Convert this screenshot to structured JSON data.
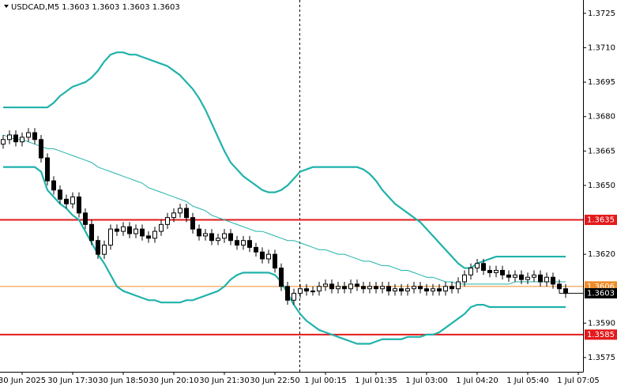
{
  "chart_data": {
    "type": "candlestick",
    "title": "USDCAD,M5  1.3603 1.3603 1.3603 1.3603",
    "categories": [
      null,
      null,
      null,
      "30 Jun 2025",
      null,
      null,
      null,
      null,
      null,
      null,
      null,
      "30 Jun 17:30",
      null,
      null,
      null,
      null,
      null,
      null,
      null,
      "30 Jun 18:50",
      null,
      null,
      null,
      null,
      null,
      null,
      null,
      "30 Jun 20:10",
      null,
      null,
      null,
      null,
      null,
      null,
      null,
      "30 Jun 21:30",
      null,
      null,
      null,
      null,
      null,
      null,
      null,
      "30 Jun 22:50",
      null,
      null,
      null,
      null,
      null,
      null,
      null,
      "1 Jul 00:15",
      null,
      null,
      null,
      null,
      null,
      null,
      null,
      "1 Jul 01:35",
      null,
      null,
      null,
      null,
      null,
      null,
      null,
      "1 Jul 03:00",
      null,
      null,
      null,
      null,
      null,
      null,
      null,
      "1 Jul 04:20",
      null,
      null,
      null,
      null,
      null,
      null,
      null,
      "1 Jul 05:40",
      null,
      null,
      null,
      null,
      null,
      null,
      null,
      "1 Jul 07:05"
    ],
    "open": [
      1.3668,
      1.367,
      1.3672,
      1.3669,
      1.3671,
      1.3673,
      1.367,
      1.3662,
      1.3652,
      1.3648,
      1.3644,
      1.3642,
      1.3645,
      1.3638,
      1.3633,
      1.3626,
      1.362,
      1.3624,
      1.3631,
      1.363,
      1.3632,
      1.3629,
      1.3631,
      1.3628,
      1.3627,
      1.363,
      1.3633,
      1.3636,
      1.3638,
      1.364,
      1.3636,
      1.3631,
      1.3628,
      1.3629,
      1.3626,
      1.3627,
      1.3629,
      1.3626,
      1.3624,
      1.3626,
      1.3623,
      1.3621,
      1.3618,
      1.362,
      1.3614,
      1.3606,
      1.36,
      1.3603,
      1.3605,
      1.3604,
      1.3604,
      1.3606,
      1.3607,
      1.3605,
      1.3606,
      1.3605,
      1.3607,
      1.3606,
      1.3605,
      1.3606,
      1.3605,
      1.3606,
      1.3604,
      1.3605,
      1.3604,
      1.3605,
      1.3606,
      1.3605,
      1.3604,
      1.3605,
      1.3604,
      1.3606,
      1.3605,
      1.3608,
      1.3611,
      1.3614,
      1.3616,
      1.3613,
      1.3612,
      1.3613,
      1.3611,
      1.361,
      1.3611,
      1.3609,
      1.361,
      1.3611,
      1.3608,
      1.361,
      1.3607,
      1.3605,
      null,
      null
    ],
    "high": [
      1.3672,
      1.3674,
      1.3674,
      1.3673,
      1.3675,
      1.3675,
      1.3672,
      1.3664,
      1.3654,
      1.365,
      1.3646,
      1.3647,
      1.3647,
      1.364,
      1.3635,
      1.3628,
      1.3626,
      1.3633,
      1.3633,
      1.3634,
      1.3634,
      1.3633,
      1.3633,
      1.363,
      1.3632,
      1.3635,
      1.3638,
      1.364,
      1.3642,
      1.3642,
      1.3638,
      1.3633,
      1.3631,
      1.3631,
      1.3629,
      1.3631,
      1.3631,
      1.3628,
      1.3628,
      1.3628,
      1.3625,
      1.3623,
      1.3622,
      1.3622,
      1.3616,
      1.3608,
      1.3605,
      1.3607,
      1.3607,
      1.3606,
      1.3608,
      1.3609,
      1.3609,
      1.3608,
      1.3608,
      1.3609,
      1.3609,
      1.3608,
      1.3608,
      1.3608,
      1.3608,
      1.3608,
      1.3607,
      1.3607,
      1.3607,
      1.3608,
      1.3608,
      1.3607,
      1.3607,
      1.3607,
      1.3608,
      1.3608,
      1.361,
      1.3613,
      1.3616,
      1.3618,
      1.3618,
      1.3615,
      1.3615,
      1.3615,
      1.3613,
      1.3613,
      1.3613,
      1.3612,
      1.3613,
      1.3613,
      1.3612,
      1.3612,
      1.3609,
      1.3607,
      null,
      null
    ],
    "low": [
      1.3666,
      1.3668,
      1.3667,
      1.3667,
      1.3669,
      1.3668,
      1.366,
      1.365,
      1.3646,
      1.3642,
      1.364,
      1.364,
      1.3636,
      1.3631,
      1.3624,
      1.3618,
      1.3618,
      1.3622,
      1.3628,
      1.3628,
      1.3627,
      1.3627,
      1.3626,
      1.3625,
      1.3625,
      1.3628,
      1.3631,
      1.3634,
      1.3636,
      1.3634,
      1.3629,
      1.3626,
      1.3626,
      1.3624,
      1.3624,
      1.3625,
      1.3624,
      1.3622,
      1.3622,
      1.3621,
      1.3619,
      1.3616,
      1.3616,
      1.3612,
      1.3604,
      1.3598,
      1.3598,
      1.3601,
      1.3602,
      1.3602,
      1.3602,
      1.3604,
      1.3603,
      1.3603,
      1.3603,
      1.3603,
      1.3604,
      1.3603,
      1.3603,
      1.3603,
      1.3603,
      1.3602,
      1.3602,
      1.3602,
      1.3602,
      1.3603,
      1.3603,
      1.3602,
      1.3602,
      1.3602,
      1.3602,
      1.3603,
      1.3603,
      1.3606,
      1.3609,
      1.3612,
      1.3611,
      1.361,
      1.361,
      1.3609,
      1.3608,
      1.3608,
      1.3607,
      1.3607,
      1.3608,
      1.3606,
      1.3606,
      1.3605,
      1.3603,
      1.3601,
      null,
      null
    ],
    "close": [
      1.367,
      1.3672,
      1.3669,
      1.3671,
      1.3673,
      1.367,
      1.3662,
      1.3652,
      1.3648,
      1.3644,
      1.3642,
      1.3645,
      1.3638,
      1.3633,
      1.3626,
      1.362,
      1.3624,
      1.3631,
      1.363,
      1.3632,
      1.3629,
      1.3631,
      1.3628,
      1.3627,
      1.363,
      1.3633,
      1.3636,
      1.3638,
      1.364,
      1.3636,
      1.3631,
      1.3628,
      1.3629,
      1.3626,
      1.3627,
      1.3629,
      1.3626,
      1.3624,
      1.3626,
      1.3623,
      1.3621,
      1.3618,
      1.362,
      1.3614,
      1.3606,
      1.36,
      1.3603,
      1.3605,
      1.3604,
      1.3604,
      1.3606,
      1.3607,
      1.3605,
      1.3606,
      1.3605,
      1.3607,
      1.3606,
      1.3605,
      1.3606,
      1.3605,
      1.3606,
      1.3604,
      1.3605,
      1.3604,
      1.3605,
      1.3606,
      1.3605,
      1.3604,
      1.3605,
      1.3604,
      1.3606,
      1.3605,
      1.3608,
      1.3611,
      1.3614,
      1.3616,
      1.3613,
      1.3612,
      1.3613,
      1.3611,
      1.361,
      1.3611,
      1.3609,
      1.361,
      1.3611,
      1.3608,
      1.361,
      1.3607,
      1.3605,
      1.3603,
      null,
      null
    ],
    "candle_color": "#000000",
    "bands": {
      "color": "#20b2aa",
      "upper": [
        1.3684,
        1.3684,
        1.3684,
        1.3684,
        1.3684,
        1.3684,
        1.3684,
        1.3684,
        1.3686,
        1.3689,
        1.3691,
        1.3693,
        1.3694,
        1.3695,
        1.3697,
        1.37,
        1.3704,
        1.3707,
        1.3708,
        1.3708,
        1.3707,
        1.3707,
        1.3706,
        1.3705,
        1.3704,
        1.3703,
        1.3702,
        1.37,
        1.3698,
        1.3695,
        1.3692,
        1.3688,
        1.3683,
        1.3677,
        1.3671,
        1.3665,
        1.366,
        1.3657,
        1.3654,
        1.3652,
        1.365,
        1.3648,
        1.3647,
        1.3647,
        1.3648,
        1.365,
        1.3653,
        1.3656,
        1.3657,
        1.3658,
        1.3658,
        1.3658,
        1.3658,
        1.3658,
        1.3658,
        1.3658,
        1.3658,
        1.3657,
        1.3655,
        1.3652,
        1.3648,
        1.3645,
        1.3642,
        1.364,
        1.3638,
        1.3636,
        1.3634,
        1.3631,
        1.3628,
        1.3625,
        1.3622,
        1.3619,
        1.3616,
        1.3614,
        1.3614,
        1.3616,
        1.3617,
        1.3618,
        1.3619,
        1.3619,
        1.3619,
        1.3619,
        1.3619,
        1.3619,
        1.3619,
        1.3619,
        1.3619,
        1.3619,
        1.3619,
        1.3619,
        null,
        null
      ],
      "middle": [
        1.3672,
        1.3671,
        1.367,
        1.367,
        1.3669,
        1.3668,
        1.3667,
        1.3666,
        1.3666,
        1.3665,
        1.3664,
        1.3663,
        1.3662,
        1.3661,
        1.366,
        1.3658,
        1.3657,
        1.3656,
        1.3655,
        1.3654,
        1.3653,
        1.3652,
        1.3651,
        1.3649,
        1.3648,
        1.3647,
        1.3646,
        1.3645,
        1.3644,
        1.3643,
        1.3641,
        1.364,
        1.3639,
        1.3637,
        1.3636,
        1.3635,
        1.3634,
        1.3633,
        1.3632,
        1.3631,
        1.363,
        1.363,
        1.3629,
        1.3628,
        1.3627,
        1.3626,
        1.3626,
        1.3625,
        1.3624,
        1.3623,
        1.3622,
        1.3622,
        1.3621,
        1.362,
        1.362,
        1.3619,
        1.3618,
        1.3617,
        1.3617,
        1.3616,
        1.3615,
        1.3615,
        1.3614,
        1.3613,
        1.3613,
        1.3612,
        1.3611,
        1.361,
        1.361,
        1.3609,
        1.3608,
        1.3608,
        1.3607,
        1.3607,
        1.3607,
        1.3607,
        1.3607,
        1.3607,
        1.3607,
        1.3607,
        1.3607,
        1.3608,
        1.3608,
        1.3608,
        1.3608,
        1.3608,
        1.3608,
        1.3608,
        1.3608,
        1.3608,
        null,
        null
      ],
      "lower": [
        1.3658,
        1.3658,
        1.3658,
        1.3658,
        1.3658,
        1.3658,
        1.3656,
        1.3648,
        1.3645,
        1.3642,
        1.364,
        1.3637,
        1.3635,
        1.363,
        1.3625,
        1.362,
        1.3616,
        1.3611,
        1.3606,
        1.3604,
        1.3603,
        1.3602,
        1.3601,
        1.36,
        1.36,
        1.3599,
        1.3599,
        1.3599,
        1.3599,
        1.36,
        1.36,
        1.3601,
        1.3602,
        1.3603,
        1.3604,
        1.3606,
        1.3609,
        1.3611,
        1.3612,
        1.3612,
        1.3612,
        1.3612,
        1.3612,
        1.3611,
        1.3608,
        1.3603,
        1.3598,
        1.3594,
        1.3591,
        1.3589,
        1.3587,
        1.3586,
        1.3585,
        1.3584,
        1.3583,
        1.3582,
        1.3581,
        1.3581,
        1.3581,
        1.3582,
        1.3583,
        1.3583,
        1.3583,
        1.3583,
        1.3584,
        1.3584,
        1.3584,
        1.3585,
        1.3585,
        1.3586,
        1.3588,
        1.359,
        1.3592,
        1.3594,
        1.3597,
        1.3598,
        1.3598,
        1.3597,
        1.3597,
        1.3597,
        1.3597,
        1.3597,
        1.3597,
        1.3597,
        1.3597,
        1.3597,
        1.3597,
        1.3597,
        1.3597,
        1.3597,
        null,
        null
      ]
    },
    "price_lines": [
      {
        "value": 1.3635,
        "color": "#e31a1c"
      },
      {
        "value": 1.3585,
        "color": "#e31a1c"
      },
      {
        "value": 1.3606,
        "color": "#f08c28"
      }
    ],
    "current_price": 1.3603,
    "ylim": [
      1.35688,
      1.37308
    ],
    "yticks": [
      1.3725,
      {
        "value": 1.371,
        "label": "1.3710"
      },
      1.3695,
      {
        "value": 1.368,
        "label": "1.3680"
      },
      1.3665,
      {
        "value": 1.365,
        "label": "1.3650"
      },
      {
        "value": 1.362,
        "label": "1.3620"
      },
      {
        "value": 1.359,
        "label": "1.3590"
      },
      1.3575
    ]
  }
}
